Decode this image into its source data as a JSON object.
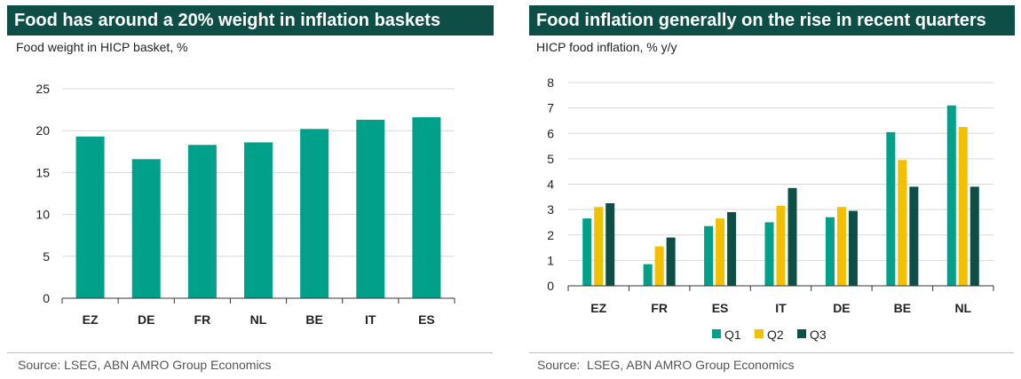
{
  "colors": {
    "title_bg": "#0d4f47",
    "q1": "#00a08a",
    "q2": "#f3c000",
    "q3": "#0d4f47",
    "bar_left": "#00a08a",
    "grid": "#d9d9d9"
  },
  "left": {
    "title": "Food has around a 20% weight in inflation baskets",
    "subtitle": "Food weight in HICP basket, %",
    "source": "Source: LSEG, ABN AMRO Group Economics"
  },
  "right": {
    "title": "Food inflation generally on the rise in recent quarters",
    "subtitle": "HICP food inflation, % y/y",
    "source": "Source:  LSEG, ABN AMRO Group Economics"
  },
  "chart_data": [
    {
      "type": "bar",
      "title": "Food has around a 20% weight in inflation baskets",
      "subtitle": "Food weight in HICP basket, %",
      "categories": [
        "EZ",
        "DE",
        "FR",
        "NL",
        "BE",
        "IT",
        "ES"
      ],
      "values": [
        19.3,
        16.6,
        18.3,
        18.6,
        20.2,
        21.3,
        21.6
      ],
      "ylim": [
        0,
        25
      ],
      "yticks": [
        0,
        5,
        10,
        15,
        20,
        25
      ],
      "grid": true,
      "legend": "none"
    },
    {
      "type": "bar",
      "title": "Food inflation generally on the rise in recent quarters",
      "subtitle": "HICP food inflation, % y/y",
      "categories": [
        "EZ",
        "FR",
        "ES",
        "IT",
        "DE",
        "BE",
        "NL"
      ],
      "series": [
        {
          "name": "Q1",
          "values": [
            2.65,
            0.85,
            2.35,
            2.5,
            2.7,
            6.05,
            7.1
          ]
        },
        {
          "name": "Q2",
          "values": [
            3.1,
            1.55,
            2.65,
            3.15,
            3.1,
            4.95,
            6.25
          ]
        },
        {
          "name": "Q3",
          "values": [
            3.25,
            1.9,
            2.9,
            3.85,
            2.95,
            3.9,
            3.9
          ]
        }
      ],
      "ylim": [
        0,
        8
      ],
      "yticks": [
        0,
        1,
        2,
        3,
        4,
        5,
        6,
        7,
        8
      ],
      "grid": true,
      "legend": "bottom-center"
    }
  ]
}
